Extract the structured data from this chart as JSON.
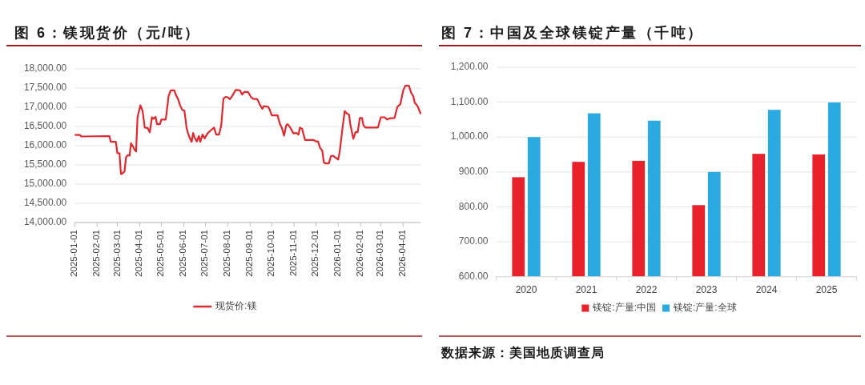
{
  "chart_data": [
    {
      "type": "line",
      "title": "图 6：镁现货价（元/吨）",
      "x": [
        "2025-01-02",
        "2025-01-08",
        "2025-01-10",
        "2025-02-18",
        "2025-02-20",
        "2025-02-27",
        "2025-03-01",
        "2025-03-04",
        "2025-03-06",
        "2025-03-07",
        "2025-03-11",
        "2025-03-13",
        "2025-03-15",
        "2025-03-18",
        "2025-03-20",
        "2025-03-23",
        "2025-03-25",
        "2025-03-27",
        "2025-03-29",
        "2025-04-02",
        "2025-04-05",
        "2025-04-08",
        "2025-04-12",
        "2025-04-15",
        "2025-04-18",
        "2025-04-20",
        "2025-04-23",
        "2025-04-25",
        "2025-04-29",
        "2025-05-01",
        "2025-05-07",
        "2025-05-08",
        "2025-05-11",
        "2025-05-14",
        "2025-05-19",
        "2025-05-21",
        "2025-05-24",
        "2025-05-27",
        "2025-05-30",
        "2025-06-02",
        "2025-06-05",
        "2025-06-07",
        "2025-06-09",
        "2025-06-12",
        "2025-06-14",
        "2025-06-16",
        "2025-06-19",
        "2025-06-22",
        "2025-06-24",
        "2025-06-27",
        "2025-06-30",
        "2025-07-04",
        "2025-07-08",
        "2025-07-13",
        "2025-07-16",
        "2025-07-20",
        "2025-07-23",
        "2025-07-26",
        "2025-07-29",
        "2025-08-01",
        "2025-08-04",
        "2025-08-07",
        "2025-08-12",
        "2025-08-18",
        "2025-08-21",
        "2025-08-24",
        "2025-08-29",
        "2025-09-02",
        "2025-09-05",
        "2025-09-11",
        "2025-09-15",
        "2025-09-18",
        "2025-09-20",
        "2025-09-26",
        "2025-09-28",
        "2025-10-01",
        "2025-10-09",
        "2025-10-12",
        "2025-10-15",
        "2025-10-18",
        "2025-10-21",
        "2025-10-23",
        "2025-10-27",
        "2025-10-31",
        "2025-11-04",
        "2025-11-07",
        "2025-11-09",
        "2025-11-12",
        "2025-11-16",
        "2025-11-28",
        "2025-12-01",
        "2025-12-04",
        "2025-12-07",
        "2025-12-10",
        "2025-12-12",
        "2025-12-14",
        "2025-12-19",
        "2025-12-22",
        "2025-12-25",
        "2025-12-28",
        "2026-01-01",
        "2026-01-03",
        "2026-01-07",
        "2026-01-10",
        "2026-01-13",
        "2026-01-16",
        "2026-01-18",
        "2026-01-22",
        "2026-01-25",
        "2026-01-28",
        "2026-01-31",
        "2026-02-03",
        "2026-02-05",
        "2026-02-08",
        "2026-02-25",
        "2026-03-01",
        "2026-03-06",
        "2026-03-10",
        "2026-03-13",
        "2026-03-20",
        "2026-03-24",
        "2026-03-28",
        "2026-04-01",
        "2026-04-04",
        "2026-04-09",
        "2026-04-12",
        "2026-04-15",
        "2026-04-17",
        "2026-04-21",
        "2026-04-25"
      ],
      "series": [
        {
          "name": "现货价:镁",
          "color": "#e3262b",
          "values": [
            16280,
            16280,
            16240,
            16250,
            16100,
            16100,
            15810,
            15800,
            15270,
            15260,
            15330,
            15690,
            15750,
            15740,
            16060,
            15970,
            15890,
            15850,
            16740,
            17050,
            16910,
            16470,
            16460,
            16350,
            16740,
            16700,
            16750,
            16560,
            16560,
            16680,
            16680,
            16810,
            17290,
            17440,
            17440,
            17330,
            17220,
            17050,
            16930,
            16910,
            16460,
            16320,
            16220,
            16100,
            16330,
            16220,
            16110,
            16250,
            16100,
            16290,
            16190,
            16320,
            16390,
            16470,
            16290,
            16290,
            16530,
            17220,
            17270,
            17260,
            17210,
            17290,
            17450,
            17440,
            17330,
            17400,
            17400,
            17270,
            17220,
            17210,
            17050,
            16960,
            17030,
            17010,
            16940,
            16790,
            16790,
            16580,
            16460,
            16260,
            16530,
            16560,
            16460,
            16320,
            16330,
            16290,
            16470,
            16440,
            16150,
            16150,
            16110,
            16110,
            15940,
            15870,
            15570,
            15540,
            15540,
            15730,
            15740,
            15690,
            15640,
            15830,
            16460,
            16900,
            16840,
            16810,
            16530,
            16180,
            16350,
            16350,
            16720,
            16720,
            16530,
            16470,
            16470,
            16740,
            16740,
            16680,
            16710,
            16720,
            17010,
            17080,
            17430,
            17560,
            17560,
            17380,
            17290,
            17120,
            17030,
            16840
          ]
        }
      ],
      "xlim": [
        "2025-01-01",
        "2026-04-25"
      ],
      "xticks": [
        "2025-01-01",
        "2025-02-01",
        "2025-03-01",
        "2025-04-01",
        "2025-05-01",
        "2025-06-01",
        "2025-07-01",
        "2025-08-01",
        "2025-09-01",
        "2025-10-01",
        "2025-11-01",
        "2025-12-01",
        "2026-01-01",
        "2026-02-01",
        "2026-03-01",
        "2026-04-01"
      ],
      "ylim": [
        14000,
        18000
      ],
      "yticks": [
        {
          "value": 14000,
          "label": "14,000.00"
        },
        {
          "value": 14500,
          "label": "14,500.00"
        },
        {
          "value": 15000,
          "label": "15,000.00"
        },
        {
          "value": 15500,
          "label": "15,500.00"
        },
        {
          "value": 16000,
          "label": "16,000.00"
        },
        {
          "value": 16500,
          "label": "16,500.00"
        },
        {
          "value": 17000,
          "label": "17,000.00"
        },
        {
          "value": 17500,
          "label": "17,500.00"
        },
        {
          "value": 18000,
          "label": "18,000.00"
        }
      ],
      "grid": "y",
      "legend": "bottom",
      "line_style": "solid"
    },
    {
      "type": "bar",
      "title": "图 7：中国及全球镁锭产量（千吨）",
      "categories": [
        "2020",
        "2021",
        "2022",
        "2023",
        "2024",
        "2025"
      ],
      "series": [
        {
          "name": "镁锭:产量:中国",
          "color": "#e8212a",
          "values": [
            885,
            929,
            932,
            805,
            952,
            950
          ]
        },
        {
          "name": "镁锭:产量:全球",
          "color": "#2aaae1",
          "values": [
            1000,
            1068,
            1047,
            900,
            1078,
            1099
          ]
        }
      ],
      "ylim": [
        600,
        1200
      ],
      "yticks": [
        {
          "value": 600,
          "label": "600.00"
        },
        {
          "value": 700,
          "label": "700.00"
        },
        {
          "value": 800,
          "label": "800.00"
        },
        {
          "value": 900,
          "label": "900.00"
        },
        {
          "value": 1000,
          "label": "1,000.00"
        },
        {
          "value": 1100,
          "label": "1,100.00"
        },
        {
          "value": 1200,
          "label": "1,200.00"
        }
      ],
      "grid": "y",
      "legend": "bottom",
      "annotations": [
        "数据来源：美国地质调查局"
      ]
    }
  ]
}
